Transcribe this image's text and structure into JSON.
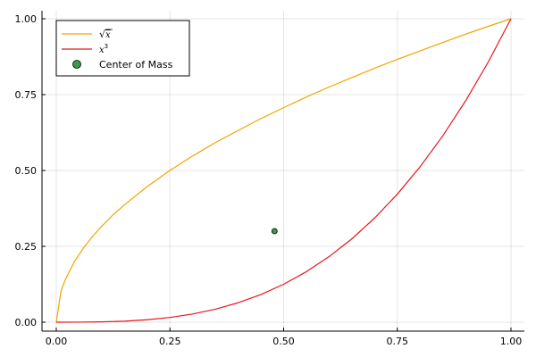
{
  "chart_data": {
    "type": "line",
    "title": "",
    "xlabel": "",
    "ylabel": "",
    "xlim": [
      0,
      1
    ],
    "ylim": [
      0,
      1
    ],
    "grid": true,
    "legend_position": "top-left",
    "x_ticks": [
      "0.00",
      "0.25",
      "0.50",
      "0.75",
      "1.00"
    ],
    "y_ticks": [
      "0.00",
      "0.25",
      "0.50",
      "0.75",
      "1.00"
    ],
    "series": [
      {
        "name": "√x",
        "legend_label": {
          "radical": "√",
          "var": "x"
        },
        "color": "#f2a400",
        "type": "line",
        "x": [
          0,
          0.01,
          0.02,
          0.04,
          0.06,
          0.08,
          0.1,
          0.125,
          0.15,
          0.2,
          0.25,
          0.3,
          0.35,
          0.4,
          0.45,
          0.5,
          0.55,
          0.6,
          0.65,
          0.7,
          0.75,
          0.8,
          0.85,
          0.9,
          0.95,
          1.0
        ],
        "y": [
          0,
          0.1,
          0.141,
          0.2,
          0.245,
          0.283,
          0.316,
          0.354,
          0.387,
          0.447,
          0.5,
          0.548,
          0.592,
          0.632,
          0.671,
          0.707,
          0.742,
          0.775,
          0.806,
          0.837,
          0.866,
          0.894,
          0.922,
          0.949,
          0.975,
          1.0
        ]
      },
      {
        "name": "x³",
        "legend_label": {
          "var": "x",
          "exp": "3"
        },
        "color": "#e8151b",
        "type": "line",
        "x": [
          0,
          0.05,
          0.1,
          0.15,
          0.2,
          0.25,
          0.3,
          0.35,
          0.4,
          0.45,
          0.5,
          0.55,
          0.6,
          0.65,
          0.7,
          0.75,
          0.8,
          0.85,
          0.9,
          0.95,
          1.0
        ],
        "y": [
          0,
          0.000125,
          0.001,
          0.003375,
          0.008,
          0.015625,
          0.027,
          0.042875,
          0.064,
          0.091125,
          0.125,
          0.166375,
          0.216,
          0.274625,
          0.343,
          0.421875,
          0.512,
          0.614125,
          0.729,
          0.857375,
          1.0
        ]
      },
      {
        "name": "Center of Mass",
        "color": "#3a9a46",
        "type": "scatter",
        "x": [
          0.48
        ],
        "y": [
          0.3
        ]
      }
    ]
  }
}
